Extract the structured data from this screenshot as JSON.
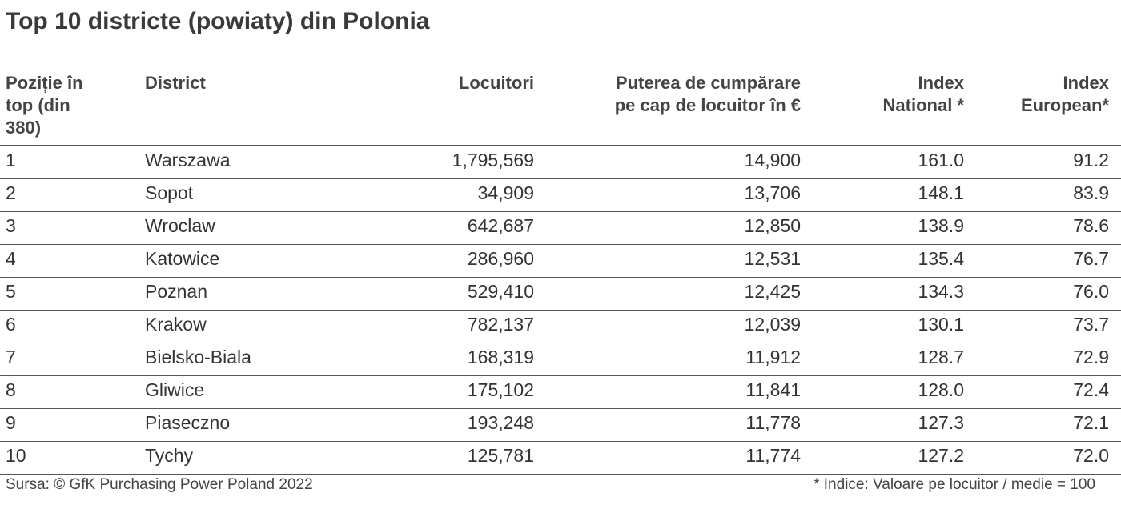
{
  "title": "Top 10 districte (powiaty)  din Polonia",
  "table": {
    "headers": [
      [
        "Poziție în",
        "top (din",
        "380)"
      ],
      [
        "District"
      ],
      [
        "Locuitori"
      ],
      [
        "Puterea de cumpărare",
        "pe cap de locuitor în €"
      ],
      [
        "Index",
        "National *"
      ],
      [
        "Index",
        "European*"
      ]
    ],
    "rows": [
      [
        "1",
        "Warszawa",
        "1,795,569",
        "14,900",
        "161.0",
        "91.2"
      ],
      [
        "2",
        "Sopot",
        "34,909",
        "13,706",
        "148.1",
        "83.9"
      ],
      [
        "3",
        "Wroclaw",
        "642,687",
        "12,850",
        "138.9",
        "78.6"
      ],
      [
        "4",
        "Katowice",
        "286,960",
        "12,531",
        "135.4",
        "76.7"
      ],
      [
        "5",
        "Poznan",
        "529,410",
        "12,425",
        "134.3",
        "76.0"
      ],
      [
        "6",
        "Krakow",
        "782,137",
        "12,039",
        "130.1",
        "73.7"
      ],
      [
        "7",
        "Bielsko-Biala",
        "168,319",
        "11,912",
        "128.7",
        "72.9"
      ],
      [
        "8",
        "Gliwice",
        "175,102",
        "11,841",
        "128.0",
        "72.4"
      ],
      [
        "9",
        "Piaseczno",
        "193,248",
        "11,778",
        "127.3",
        "72.1"
      ],
      [
        "10",
        "Tychy",
        "125,781",
        "11,774",
        "127.2",
        "72.0"
      ]
    ]
  },
  "footer": {
    "source": "Sursa: © GfK Purchasing Power Poland 2022",
    "note": "* Indice: Valoare pe locuitor / medie = 100"
  }
}
